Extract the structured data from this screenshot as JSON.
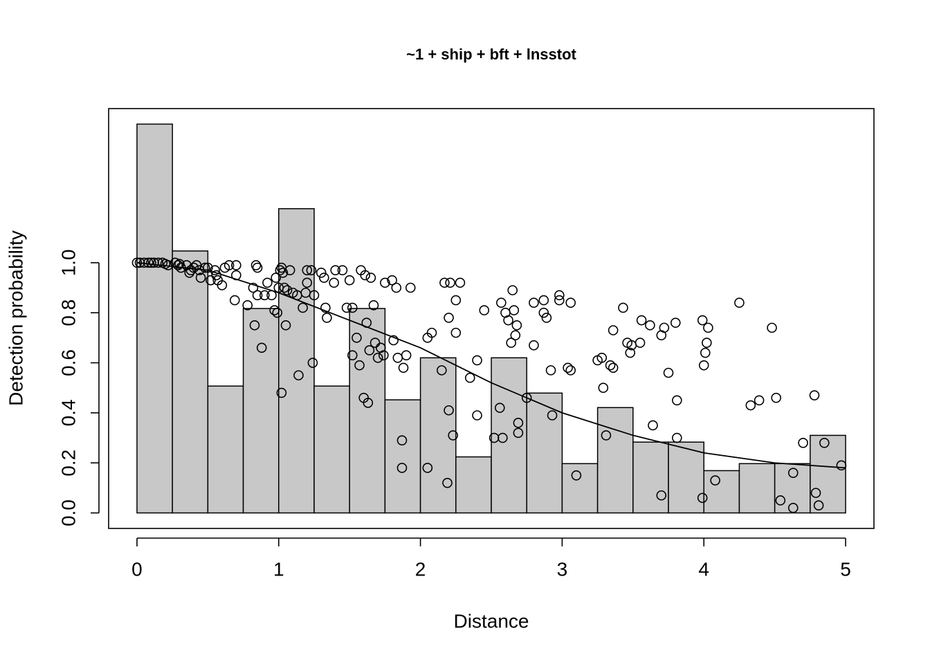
{
  "chart_data": {
    "type": "histogram",
    "title": "~1 + ship + bft + lnsstot",
    "xlabel": "Distance",
    "ylabel": "Detection probability",
    "xlim": [
      -0.2,
      5.2
    ],
    "ylim": [
      -0.062,
      1.616
    ],
    "xticks": [
      0,
      1,
      2,
      3,
      4,
      5
    ],
    "yticks": [
      {
        "value": 0,
        "label": "0.0"
      },
      0.2,
      0.4,
      0.6,
      0.8,
      {
        "value": 1,
        "label": "1.0"
      }
    ],
    "bar_color": "#c8c8c8",
    "bins": [
      0,
      0.25,
      0.5,
      0.75,
      1,
      1.25,
      1.5,
      1.75,
      2,
      2.25,
      2.5,
      2.75,
      3,
      3.25,
      3.5,
      3.75,
      4,
      4.25,
      4.5,
      4.75,
      5
    ],
    "values": [
      1.554,
      1.047,
      0.507,
      0.817,
      1.216,
      0.507,
      0.817,
      0.452,
      0.62,
      0.224,
      0.62,
      0.479,
      0.197,
      0.421,
      0.283,
      0.283,
      0.169,
      0.197,
      0.197,
      0.31
    ],
    "points": {
      "x": [
        0,
        0.02,
        0.05,
        0.08,
        0.1,
        0.12,
        0.15,
        0.18,
        0.2,
        0.22,
        0.27,
        0.29,
        0.3,
        0.31,
        0.35,
        0.37,
        0.38,
        0.4,
        0.42,
        0.44,
        0.45,
        0.48,
        0.5,
        0.52,
        0.55,
        0.56,
        0.57,
        0.6,
        0.62,
        0.65,
        0.7,
        0.7,
        0.69,
        0.78,
        0.82,
        0.84,
        0.85,
        0.83,
        0.85,
        0.88,
        0.9,
        0.92,
        0.95,
        0.97,
        0.98,
        0.99,
        1.0,
        1.01,
        1.02,
        1.02,
        1.03,
        1.04,
        1.05,
        1.06,
        1.08,
        1.1,
        1.13,
        1.14,
        1.17,
        1.19,
        1.2,
        1.2,
        1.23,
        1.24,
        1.25,
        1.3,
        1.32,
        1.33,
        1.34,
        1.39,
        1.4,
        1.45,
        1.48,
        1.5,
        1.52,
        1.52,
        1.55,
        1.57,
        1.58,
        1.6,
        1.61,
        1.62,
        1.63,
        1.64,
        1.65,
        1.67,
        1.68,
        1.7,
        1.72,
        1.74,
        1.75,
        1.8,
        1.81,
        1.83,
        1.84,
        1.87,
        1.87,
        1.88,
        1.9,
        1.93,
        2.05,
        2.05,
        2.08,
        2.15,
        2.17,
        2.19,
        2.2,
        2.2,
        2.21,
        2.23,
        2.25,
        2.25,
        2.28,
        2.35,
        2.4,
        2.4,
        2.45,
        2.52,
        2.56,
        2.57,
        2.58,
        2.6,
        2.62,
        2.64,
        2.65,
        2.66,
        2.67,
        2.68,
        2.69,
        2.69,
        2.75,
        2.8,
        2.8,
        2.87,
        2.87,
        2.89,
        2.92,
        2.93,
        2.98,
        2.98,
        3.04,
        3.06,
        3.06,
        3.1,
        3.25,
        3.28,
        3.29,
        3.31,
        3.34,
        3.36,
        3.36,
        3.43,
        3.46,
        3.48,
        3.49,
        3.55,
        3.56,
        3.62,
        3.64,
        3.7,
        3.7,
        3.72,
        3.75,
        3.8,
        3.81,
        3.81,
        3.99,
        3.99,
        4.0,
        4.01,
        4.02,
        4.03,
        4.08,
        4.25,
        4.33,
        4.39,
        4.48,
        4.51,
        4.54,
        4.63,
        4.63,
        4.7,
        4.78,
        4.79,
        4.81,
        4.85,
        4.97
      ],
      "values": [
        1,
        1,
        1,
        1,
        1,
        1,
        1,
        1,
        0.995,
        0.99,
        1,
        0.99,
        0.995,
        0.98,
        0.99,
        0.96,
        0.97,
        0.98,
        0.99,
        0.97,
        0.94,
        0.98,
        0.98,
        0.93,
        0.97,
        0.95,
        0.93,
        0.91,
        0.98,
        0.99,
        0.99,
        0.95,
        0.85,
        0.83,
        0.9,
        0.99,
        0.98,
        0.75,
        0.87,
        0.66,
        0.87,
        0.92,
        0.87,
        0.81,
        0.94,
        0.8,
        0.9,
        0.97,
        0.98,
        0.48,
        0.96,
        0.9,
        0.75,
        0.89,
        0.97,
        0.88,
        0.87,
        0.55,
        0.82,
        0.88,
        0.92,
        0.97,
        0.97,
        0.6,
        0.87,
        0.96,
        0.94,
        0.82,
        0.78,
        0.92,
        0.97,
        0.97,
        0.82,
        0.93,
        0.82,
        0.63,
        0.7,
        0.59,
        0.97,
        0.46,
        0.95,
        0.76,
        0.44,
        0.65,
        0.94,
        0.83,
        0.68,
        0.62,
        0.66,
        0.63,
        0.92,
        0.93,
        0.69,
        0.9,
        0.62,
        0.29,
        0.18,
        0.58,
        0.63,
        0.9,
        0.7,
        0.18,
        0.72,
        0.57,
        0.92,
        0.12,
        0.41,
        0.78,
        0.92,
        0.31,
        0.85,
        0.72,
        0.92,
        0.54,
        0.61,
        0.39,
        0.81,
        0.3,
        0.42,
        0.84,
        0.3,
        0.8,
        0.77,
        0.68,
        0.89,
        0.81,
        0.71,
        0.75,
        0.36,
        0.32,
        0.46,
        0.84,
        0.67,
        0.85,
        0.8,
        0.78,
        0.57,
        0.39,
        0.87,
        0.85,
        0.58,
        0.84,
        0.57,
        0.15,
        0.61,
        0.62,
        0.5,
        0.31,
        0.59,
        0.73,
        0.58,
        0.82,
        0.68,
        0.64,
        0.67,
        0.68,
        0.77,
        0.75,
        0.35,
        0.07,
        0.71,
        0.74,
        0.56,
        0.76,
        0.45,
        0.3,
        0.77,
        0.06,
        0.59,
        0.64,
        0.68,
        0.74,
        0.13,
        0.84,
        0.43,
        0.45,
        0.74,
        0.46,
        0.05,
        0.16,
        0.02,
        0.28,
        0.47,
        0.08,
        0.03,
        0.28,
        0.19
      ]
    },
    "curve": {
      "x": [
        0,
        0.5,
        1,
        1.5,
        2,
        2.5,
        3,
        3.5,
        4,
        4.5,
        5
      ],
      "values": [
        1.0,
        0.97,
        0.88,
        0.77,
        0.66,
        0.52,
        0.4,
        0.31,
        0.24,
        0.2,
        0.18
      ]
    }
  }
}
